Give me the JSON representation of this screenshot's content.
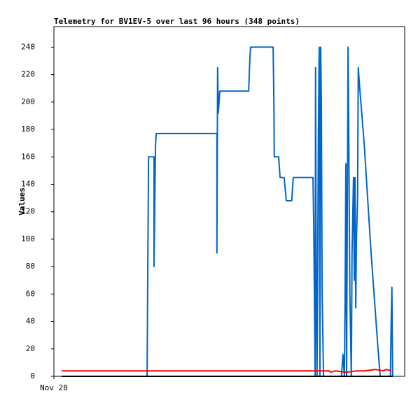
{
  "chart_data": {
    "type": "line",
    "title": "Telemetry for BV1EV-5 over last 96 hours (348 points)",
    "y_label": "Values",
    "xlim": [
      0,
      96
    ],
    "xticks": [
      {
        "value": 0,
        "label": "Nov 28"
      }
    ],
    "ylim": [
      0,
      255
    ],
    "yticks": [
      0,
      20,
      40,
      60,
      80,
      100,
      120,
      140,
      160,
      180,
      200,
      220,
      240
    ],
    "series": [
      {
        "color": "#0066cc",
        "x": [
          25.5,
          25.7,
          25.9,
          27.4,
          27.4,
          27.8,
          28.0,
          44.6,
          44.6,
          44.8,
          45.0,
          45.4,
          53.3,
          53.6,
          53.8,
          60.0,
          60.2,
          60.3,
          61.5,
          61.9,
          63.0,
          63.6,
          65.1,
          65.5,
          70.9,
          71.1,
          71.5,
          71.6,
          71.8,
          72.0,
          72.4,
          72.6,
          72.8,
          73.0,
          73.2,
          73.4,
          73.8,
          78.7,
          79.1,
          79.5,
          79.7,
          79.9,
          80.1,
          80.5,
          80.7,
          81.0,
          81.4,
          81.6,
          82.0,
          82.2,
          82.4,
          82.6,
          82.8,
          83.1,
          83.3,
          83.7,
          84.9,
          86.8,
          88.7,
          89.3,
          92.1,
          92.3,
          92.5,
          92.7
        ],
        "values": [
          0,
          80,
          160,
          160,
          80,
          168,
          177,
          177,
          90,
          225,
          192,
          208,
          208,
          230,
          240,
          240,
          200,
          160,
          160,
          145,
          145,
          128,
          128,
          145,
          145,
          110,
          0,
          225,
          60,
          0,
          180,
          240,
          0,
          240,
          200,
          60,
          0,
          0,
          16,
          0,
          60,
          155,
          0,
          240,
          170,
          60,
          0,
          90,
          145,
          70,
          145,
          50,
          100,
          130,
          225,
          210,
          170,
          90,
          20,
          0,
          0,
          40,
          65,
          0
        ]
      },
      {
        "color": "#ff0000",
        "x": [
          2.1,
          75.3,
          75.8,
          77,
          80,
          83,
          85,
          88,
          90,
          91,
          92.3
        ],
        "values": [
          4,
          4,
          3,
          4,
          3,
          4,
          4,
          5,
          4,
          5,
          4
        ]
      },
      {
        "color": "#000000",
        "x": [
          2.1,
          92.7
        ],
        "values": [
          0,
          0
        ]
      }
    ]
  }
}
